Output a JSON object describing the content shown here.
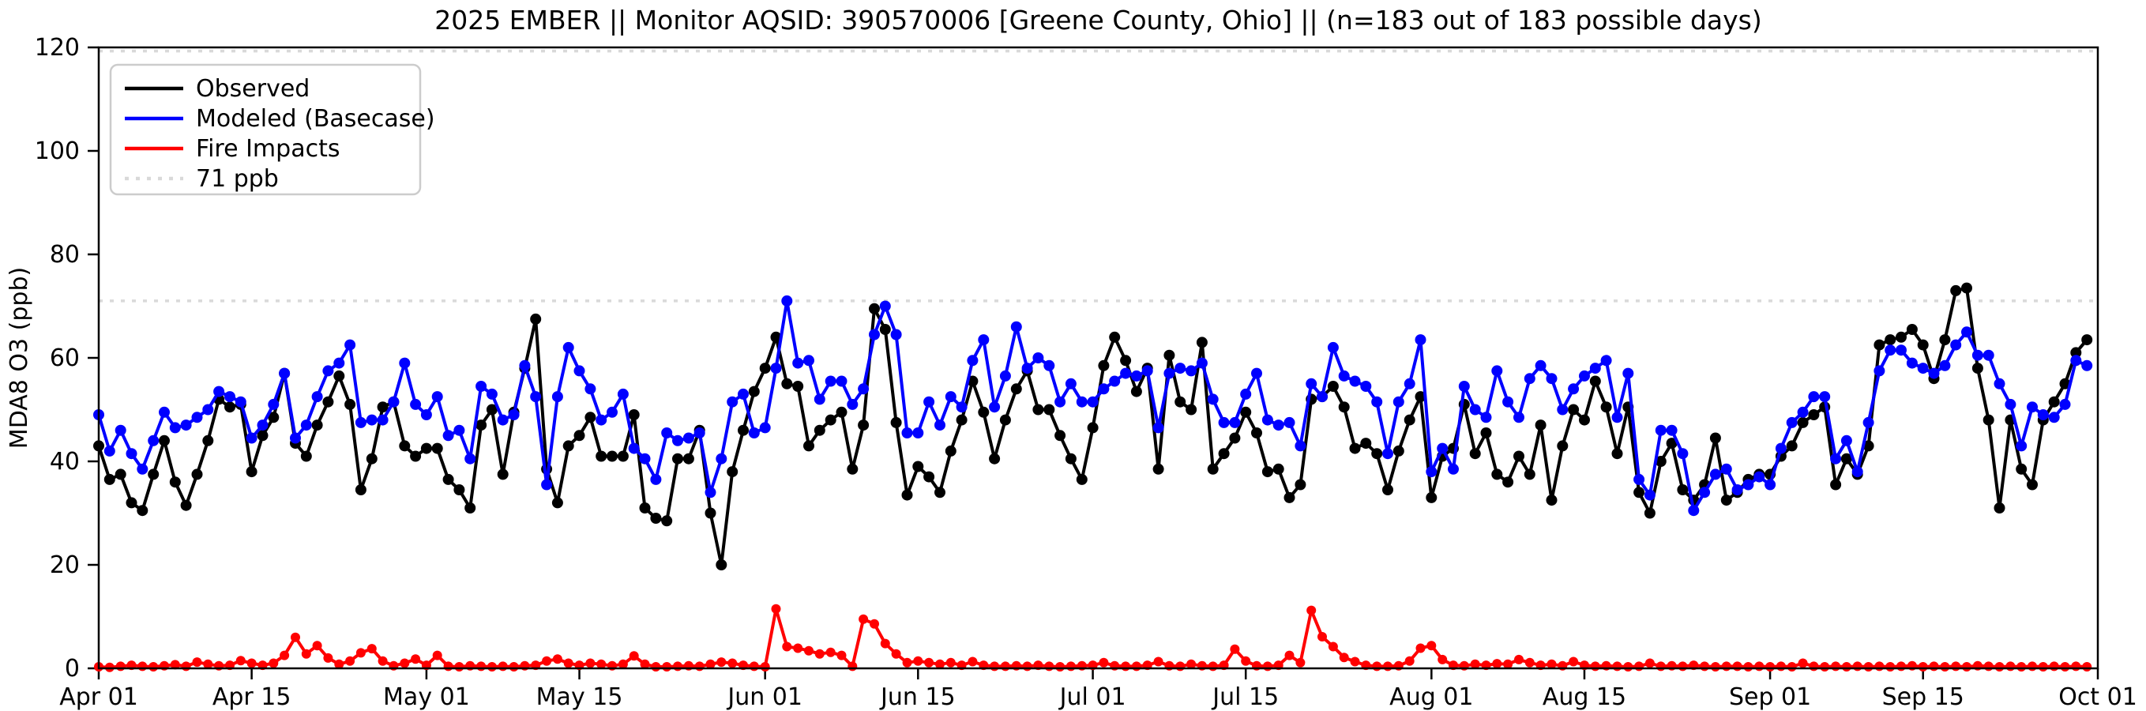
{
  "chart_data": {
    "type": "line",
    "title": "2025 EMBER || Monitor AQSID: 390570006 [Greene County, Ohio] || (n=183 out of 183 possible days)",
    "ylabel": "MDA8 O3 (ppb)",
    "ylim": [
      0,
      120
    ],
    "yticks": [
      0,
      20,
      40,
      60,
      80,
      100,
      120
    ],
    "grid": false,
    "legend_position": "upper-left",
    "x_start_date": "Apr 01",
    "n_days": 183,
    "xticks": [
      {
        "day": 0,
        "label": "Apr 01"
      },
      {
        "day": 14,
        "label": "Apr 15"
      },
      {
        "day": 30,
        "label": "May 01"
      },
      {
        "day": 44,
        "label": "May 15"
      },
      {
        "day": 61,
        "label": "Jun 01"
      },
      {
        "day": 75,
        "label": "Jun 15"
      },
      {
        "day": 91,
        "label": "Jul 01"
      },
      {
        "day": 105,
        "label": "Jul 15"
      },
      {
        "day": 122,
        "label": "Aug 01"
      },
      {
        "day": 136,
        "label": "Aug 15"
      },
      {
        "day": 153,
        "label": "Sep 01"
      },
      {
        "day": 167,
        "label": "Sep 15"
      },
      {
        "day": 183,
        "label": "Oct 01"
      }
    ],
    "threshold": {
      "value": 71,
      "label": "71 ppb",
      "color": "#d9d9d9"
    },
    "upper_dotted_value": 119.3,
    "series": [
      {
        "name": "Observed",
        "color": "#000000",
        "values": [
          43,
          36.5,
          37.5,
          32,
          30.5,
          37.5,
          44,
          36,
          31.5,
          37.5,
          44,
          52,
          50.5,
          51,
          38,
          45,
          48.5,
          57,
          43.5,
          41,
          47,
          51.5,
          56.5,
          51,
          34.5,
          40.5,
          50.5,
          51.5,
          43,
          41,
          42.5,
          42.5,
          36.5,
          34.5,
          31,
          47,
          50,
          37.5,
          49.5,
          58,
          67.5,
          38.5,
          32,
          43,
          45,
          48.5,
          41,
          41,
          41,
          49,
          31,
          29,
          28.5,
          40.5,
          40.5,
          46,
          30,
          20,
          38,
          46,
          53.5,
          58,
          64,
          55,
          54.5,
          43,
          46,
          48,
          49.5,
          38.5,
          47,
          69.5,
          65.5,
          47.5,
          33.5,
          39,
          37,
          34,
          42,
          48,
          55.5,
          49.5,
          40.5,
          48,
          54,
          57.5,
          50,
          50,
          45,
          40.5,
          36.5,
          46.5,
          58.5,
          64,
          59.5,
          53.5,
          58,
          38.5,
          60.5,
          51.5,
          50,
          63,
          38.5,
          41.5,
          44.5,
          49.5,
          45.5,
          38,
          38.5,
          33,
          35.5,
          52,
          52.5,
          54.5,
          50.5,
          42.5,
          43.5,
          41.5,
          34.5,
          42,
          48,
          52.5,
          33,
          41,
          42.5,
          51,
          41.5,
          45.5,
          37.5,
          36,
          41,
          37.5,
          47,
          32.5,
          43,
          50,
          48,
          55.5,
          50.5,
          41.5,
          50.5,
          34,
          30,
          40,
          43.5,
          34.5,
          32.5,
          35.5,
          44.5,
          32.5,
          34,
          36.5,
          37.5,
          37.5,
          41,
          43,
          47.5,
          49,
          50.5,
          35.5,
          40.5,
          37.5,
          43,
          62.5,
          63.5,
          64,
          65.5,
          62.5,
          56,
          63.5,
          73,
          73.5,
          58,
          48,
          31,
          48,
          38.5,
          35.5,
          48,
          51.5,
          55,
          61,
          63.5
        ]
      },
      {
        "name": "Modeled (Basecase)",
        "color": "#0000ff",
        "values": [
          49,
          42,
          46,
          41.5,
          38.5,
          44,
          49.5,
          46.5,
          47,
          48.5,
          50,
          53.5,
          52.5,
          51.5,
          44.5,
          47,
          51,
          57,
          44.5,
          47,
          52.5,
          57.5,
          59,
          62.5,
          47.5,
          48,
          48,
          51.5,
          59,
          51,
          49,
          52.5,
          45,
          46,
          40.5,
          54.5,
          53,
          48,
          49,
          58.5,
          52.5,
          35.5,
          52.5,
          62,
          57.5,
          54,
          48,
          49.5,
          53,
          42.5,
          40.5,
          36.5,
          45.5,
          44,
          44.5,
          45.5,
          34,
          40.5,
          51.5,
          53,
          45.5,
          46.5,
          58,
          71,
          59,
          59.5,
          52,
          55.5,
          55.5,
          51,
          54,
          64.5,
          70,
          64.5,
          45.5,
          45.5,
          51.5,
          47,
          52.5,
          50.5,
          59.5,
          63.5,
          50.5,
          56.5,
          66,
          58,
          60,
          58.5,
          51.5,
          55,
          51.5,
          51.5,
          54,
          55.5,
          57,
          56.5,
          57.5,
          46.5,
          57,
          58,
          57.5,
          59,
          52,
          47.5,
          47.5,
          53,
          57,
          48,
          47,
          47.5,
          43,
          55,
          52.5,
          62,
          56.5,
          55.5,
          54.5,
          51.5,
          41.5,
          51.5,
          55,
          63.5,
          38,
          42.5,
          38.5,
          54.5,
          50,
          48.5,
          57.5,
          51.5,
          48.5,
          56,
          58.5,
          56,
          50,
          54,
          56.5,
          58,
          59.5,
          48.5,
          57,
          36.5,
          33.5,
          46,
          46,
          41.5,
          30.5,
          34,
          37.5,
          38.5,
          34.5,
          35.5,
          37,
          35.5,
          42.5,
          47.5,
          49.5,
          52.5,
          52.5,
          40.5,
          44,
          38,
          47.5,
          57.5,
          61.5,
          61.5,
          59,
          58,
          57,
          58.5,
          62.5,
          65,
          60.5,
          60.5,
          55,
          51,
          43,
          50.5,
          49,
          48.5,
          51,
          59.5,
          58.5
        ]
      },
      {
        "name": "Fire Impacts",
        "color": "#ff0000",
        "values": [
          0.3,
          0.2,
          0.4,
          0.6,
          0.4,
          0.3,
          0.5,
          0.7,
          0.4,
          1.2,
          0.8,
          0.5,
          0.6,
          1.5,
          1,
          0.6,
          1,
          2.5,
          6,
          2.8,
          4.4,
          2,
          0.8,
          1.4,
          3,
          3.8,
          1.4,
          0.5,
          1,
          1.8,
          0.6,
          2.5,
          0.4,
          0.3,
          0.5,
          0.4,
          0.3,
          0.4,
          0.3,
          0.5,
          0.6,
          1.4,
          1.8,
          1,
          0.6,
          1,
          0.8,
          0.5,
          0.8,
          2.4,
          0.8,
          0.3,
          0.3,
          0.4,
          0.5,
          0.4,
          0.8,
          1.2,
          1,
          0.6,
          0.4,
          0.3,
          11.5,
          4.2,
          3.9,
          3.4,
          2.8,
          3.1,
          2.5,
          0.4,
          9.5,
          8.6,
          4.8,
          2.8,
          1.1,
          1.4,
          1.1,
          0.8,
          1.1,
          0.6,
          1.3,
          0.6,
          0.4,
          0.4,
          0.5,
          0.4,
          0.6,
          0.4,
          0.3,
          0.4,
          0.5,
          0.6,
          1.1,
          0.5,
          0.4,
          0.4,
          0.6,
          1.3,
          0.5,
          0.4,
          0.8,
          0.5,
          0.4,
          0.6,
          3.7,
          1.4,
          0.5,
          0.4,
          0.6,
          2.5,
          1.1,
          11.2,
          6.1,
          4.2,
          2.1,
          1.3,
          0.6,
          0.4,
          0.4,
          0.5,
          1.4,
          3.9,
          4.4,
          1.7,
          0.6,
          0.5,
          0.8,
          0.6,
          0.9,
          0.8,
          1.7,
          1.1,
          0.6,
          0.8,
          0.5,
          1.3,
          0.6,
          0.4,
          0.5,
          0.4,
          0.3,
          0.4,
          1,
          0.4,
          0.5,
          0.4,
          0.6,
          0.4,
          0.3,
          0.4,
          0.4,
          0.3,
          0.4,
          0.3,
          0.4,
          0.3,
          1,
          0.4,
          0.3,
          0.4,
          0.3,
          0.4,
          0.3,
          0.4,
          0.3,
          0.4,
          0.5,
          0.3,
          0.4,
          0.3,
          0.4,
          0.3,
          0.5,
          0.4,
          0.3,
          0.4,
          0.3,
          0.4,
          0.3,
          0.4,
          0.3,
          0.4,
          0.3
        ]
      }
    ]
  }
}
